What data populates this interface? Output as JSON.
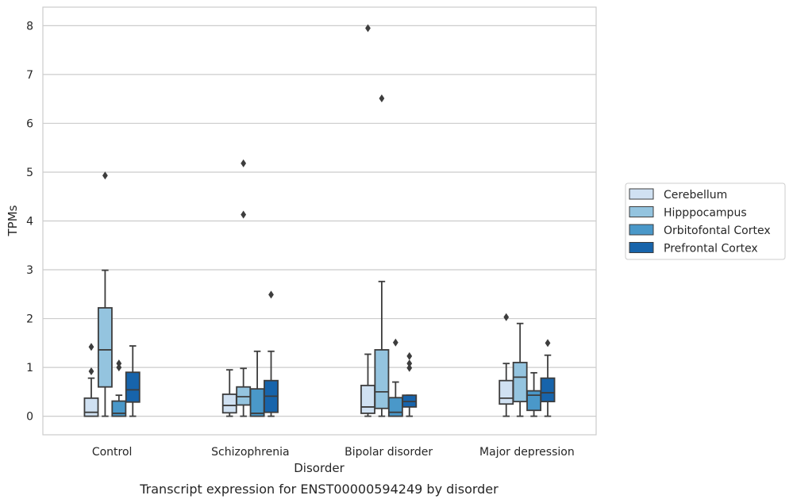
{
  "chart_data": {
    "type": "box",
    "title": "Transcript expression for ENST00000594249 by disorder",
    "xlabel": "Disorder",
    "ylabel": "TPMs",
    "ylim": [
      -0.38,
      8.38
    ],
    "yticks": [
      "0",
      "1",
      "2",
      "3",
      "4",
      "5",
      "6",
      "7",
      "8"
    ],
    "grid": "horizontal",
    "legend_position": "right",
    "categories": [
      "Control",
      "Schizophrenia",
      "Bipolar disorder",
      "Major depression"
    ],
    "series": [
      {
        "name": "Cerebellum",
        "color": "#d0e1f2",
        "boxes": [
          {
            "wl": 0.0,
            "q1": 0.0,
            "med": 0.08,
            "q3": 0.37,
            "wh": 0.78,
            "outliers": [
              0.92,
              1.42
            ]
          },
          {
            "wl": 0.0,
            "q1": 0.07,
            "med": 0.22,
            "q3": 0.45,
            "wh": 0.95,
            "outliers": []
          },
          {
            "wl": 0.0,
            "q1": 0.06,
            "med": 0.19,
            "q3": 0.63,
            "wh": 1.27,
            "outliers": [
              7.95
            ]
          },
          {
            "wl": 0.0,
            "q1": 0.25,
            "med": 0.37,
            "q3": 0.73,
            "wh": 1.08,
            "outliers": [
              2.03
            ]
          }
        ]
      },
      {
        "name": "Hipppocampus",
        "color": "#94c4df",
        "boxes": [
          {
            "wl": 0.0,
            "q1": 0.6,
            "med": 1.36,
            "q3": 2.22,
            "wh": 2.99,
            "outliers": [
              4.93
            ]
          },
          {
            "wl": 0.0,
            "q1": 0.23,
            "med": 0.4,
            "q3": 0.6,
            "wh": 0.98,
            "outliers": [
              5.18,
              4.13
            ]
          },
          {
            "wl": 0.0,
            "q1": 0.16,
            "med": 0.5,
            "q3": 1.36,
            "wh": 2.76,
            "outliers": [
              6.51
            ]
          },
          {
            "wl": 0.0,
            "q1": 0.3,
            "med": 0.8,
            "q3": 1.1,
            "wh": 1.9,
            "outliers": []
          }
        ]
      },
      {
        "name": "Orbitofontal Cortex",
        "color": "#4a98c9",
        "boxes": [
          {
            "wl": 0.0,
            "q1": 0.0,
            "med": 0.06,
            "q3": 0.31,
            "wh": 0.43,
            "outliers": [
              1.0,
              1.08
            ]
          },
          {
            "wl": 0.0,
            "q1": 0.0,
            "med": 0.06,
            "q3": 0.56,
            "wh": 1.33,
            "outliers": []
          },
          {
            "wl": 0.0,
            "q1": 0.0,
            "med": 0.08,
            "q3": 0.38,
            "wh": 0.7,
            "outliers": [
              1.51
            ]
          },
          {
            "wl": 0.0,
            "q1": 0.12,
            "med": 0.43,
            "q3": 0.52,
            "wh": 0.89,
            "outliers": []
          }
        ]
      },
      {
        "name": "Prefrontal Cortex",
        "color": "#1764ab",
        "boxes": [
          {
            "wl": 0.0,
            "q1": 0.29,
            "med": 0.54,
            "q3": 0.9,
            "wh": 1.44,
            "outliers": []
          },
          {
            "wl": 0.0,
            "q1": 0.08,
            "med": 0.41,
            "q3": 0.73,
            "wh": 1.33,
            "outliers": [
              2.49
            ]
          },
          {
            "wl": 0.0,
            "q1": 0.19,
            "med": 0.3,
            "q3": 0.43,
            "wh": 0.43,
            "outliers": [
              0.99,
              1.08,
              1.23
            ]
          },
          {
            "wl": 0.0,
            "q1": 0.3,
            "med": 0.48,
            "q3": 0.78,
            "wh": 1.25,
            "outliers": [
              1.5
            ]
          }
        ]
      }
    ]
  }
}
